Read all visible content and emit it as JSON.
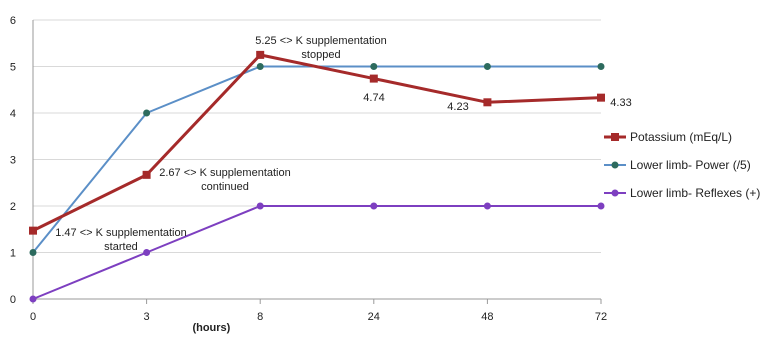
{
  "chart_data": {
    "type": "line",
    "categories": [
      "0",
      "3",
      "8",
      "24",
      "48",
      "72"
    ],
    "xlabel": "(hours)",
    "ylabel": "",
    "ylim": [
      0,
      6
    ],
    "yticks": [
      "0",
      "1",
      "2",
      "3",
      "4",
      "5",
      "6"
    ],
    "grid": "horizontal",
    "legend": "right",
    "series": [
      {
        "name": "Potassium (mEq/L)",
        "values": [
          1.47,
          2.67,
          5.25,
          4.74,
          4.23,
          4.33
        ],
        "color": "#a52a2a",
        "marker": "square"
      },
      {
        "name": "Lower limb- Power (/5)",
        "values": [
          1,
          4,
          5,
          5,
          5,
          5
        ],
        "color": "#5b8fc7",
        "marker": "circle"
      },
      {
        "name": "Lower limb- Reflexes (+)",
        "values": [
          0,
          1,
          2,
          2,
          2,
          2
        ],
        "color": "#7d3fc0",
        "marker": "circle"
      }
    ],
    "annotations": [
      {
        "lines": [
          "1.47 <> K supplementation",
          "started"
        ]
      },
      {
        "lines": [
          "2.67 <> K supplementation",
          "continued"
        ]
      },
      {
        "lines": [
          "5.25 <> K supplementation",
          "stopped"
        ]
      },
      {
        "lines": [
          "4.74"
        ]
      },
      {
        "lines": [
          "4.23"
        ]
      },
      {
        "lines": [
          "4.33"
        ]
      }
    ]
  }
}
